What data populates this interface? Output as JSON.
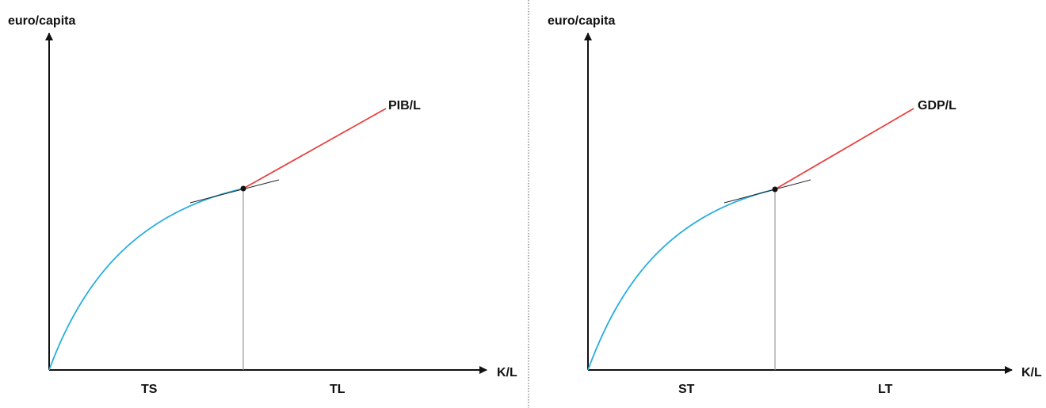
{
  "panels": [
    {
      "y_label": "euro/capita",
      "x_label": "K/L",
      "curve_label": "PIB/L",
      "left_region": "TS",
      "right_region": "TL"
    },
    {
      "y_label": "euro/capita",
      "x_label": "K/L",
      "curve_label": "GDP/L",
      "left_region": "ST",
      "right_region": "LT"
    }
  ]
}
